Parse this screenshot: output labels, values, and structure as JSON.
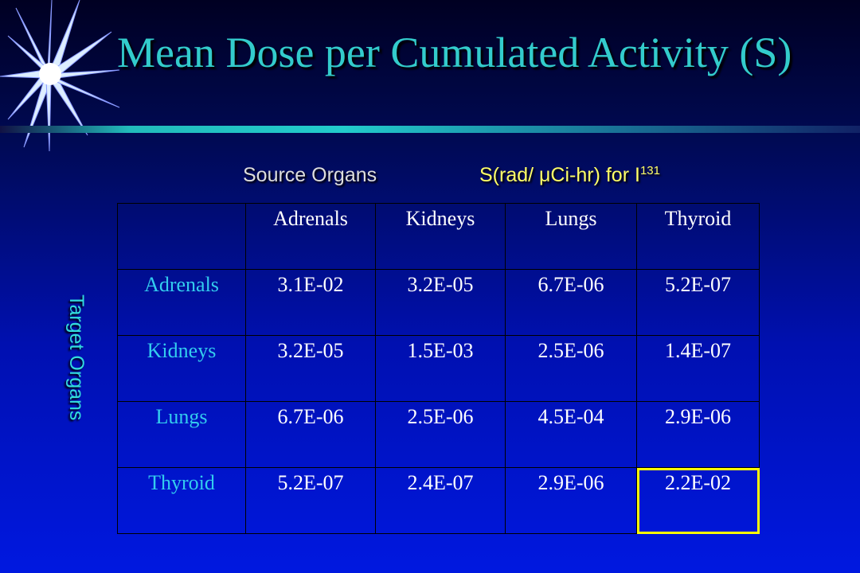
{
  "title": "Mean Dose per Cumulated Activity (S)",
  "source_label": "Source Organs",
  "units_label": {
    "text": "S(rad/ μCi-hr) for I",
    "superscript": "131"
  },
  "target_label": "Target Organs",
  "table": {
    "header": [
      "Adrenals",
      "Kidneys",
      "Lungs",
      "Thyroid"
    ],
    "rows": [
      {
        "label": "Adrenals",
        "values": [
          "3.1E-02",
          "3.2E-05",
          "6.7E-06",
          "5.2E-07"
        ]
      },
      {
        "label": "Kidneys",
        "values": [
          "3.2E-05",
          "1.5E-03",
          "2.5E-06",
          "1.4E-07"
        ]
      },
      {
        "label": "Lungs",
        "values": [
          "6.7E-06",
          "2.5E-06",
          "4.5E-04",
          "2.9E-06"
        ]
      },
      {
        "label": "Thyroid",
        "values": [
          "5.2E-07",
          "2.4E-07",
          "2.9E-06",
          "2.2E-02"
        ]
      }
    ]
  }
}
